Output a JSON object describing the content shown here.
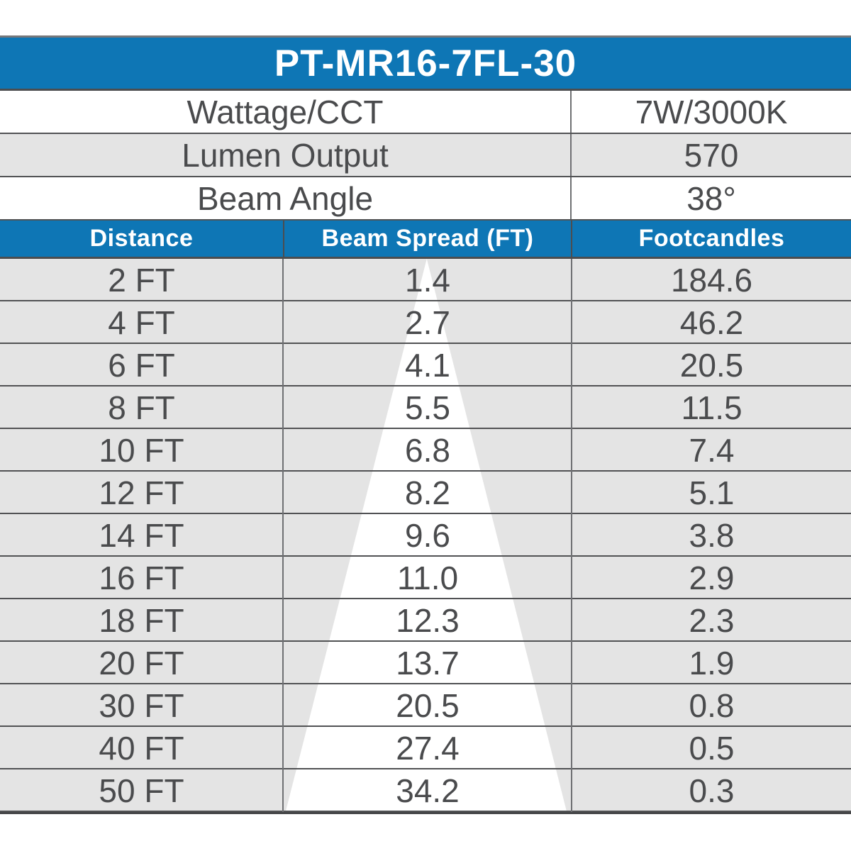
{
  "header": {
    "model": "PT-MR16-7FL-30"
  },
  "specs": {
    "rows": [
      {
        "label": "Wattage/CCT",
        "value": "7W/3000K"
      },
      {
        "label": "Lumen Output",
        "value": "570"
      },
      {
        "label": "Beam Angle",
        "value": "38°"
      }
    ]
  },
  "chart_data": {
    "type": "table",
    "title": "PT-MR16-7FL-30",
    "specs": {
      "wattage_cct": "7W/3000K",
      "lumen_output": "570",
      "beam_angle": "38°"
    },
    "columns": [
      "Distance",
      "Beam Spread (FT)",
      "Footcandles"
    ],
    "rows": [
      [
        "2 FT",
        "1.4",
        "184.6"
      ],
      [
        "4 FT",
        "2.7",
        "46.2"
      ],
      [
        "6 FT",
        "4.1",
        "20.5"
      ],
      [
        "8 FT",
        "5.5",
        "11.5"
      ],
      [
        "10 FT",
        "6.8",
        "7.4"
      ],
      [
        "12 FT",
        "8.2",
        "5.1"
      ],
      [
        "14 FT",
        "9.6",
        "3.8"
      ],
      [
        "16 FT",
        "11.0",
        "2.9"
      ],
      [
        "18 FT",
        "12.3",
        "2.3"
      ],
      [
        "20 FT",
        "13.7",
        "1.9"
      ],
      [
        "30 FT",
        "20.5",
        "0.8"
      ],
      [
        "40 FT",
        "27.4",
        "0.5"
      ],
      [
        "50 FT",
        "34.2",
        "0.3"
      ]
    ],
    "distance_ft": [
      2,
      4,
      6,
      8,
      10,
      12,
      14,
      16,
      18,
      20,
      30,
      40,
      50
    ],
    "beam_spread_ft": [
      1.4,
      2.7,
      4.1,
      5.5,
      6.8,
      8.2,
      9.6,
      11.0,
      12.3,
      13.7,
      20.5,
      27.4,
      34.2
    ],
    "footcandles": [
      184.6,
      46.2,
      20.5,
      11.5,
      7.4,
      5.1,
      3.8,
      2.9,
      2.3,
      1.9,
      0.8,
      0.5,
      0.3
    ],
    "annotations": [
      "white beam-cone triangle overlay widening from the 2 FT row down to the 50 FT row in the Beam Spread column"
    ]
  },
  "colors": {
    "accent_blue": "#0e76b5",
    "row_gray": "#e4e4e4",
    "grid_line_dark": "#515254",
    "grid_line_mid": "#6f7073",
    "text_dark": "#4a4b4d",
    "beam_white": "#ffffff"
  }
}
